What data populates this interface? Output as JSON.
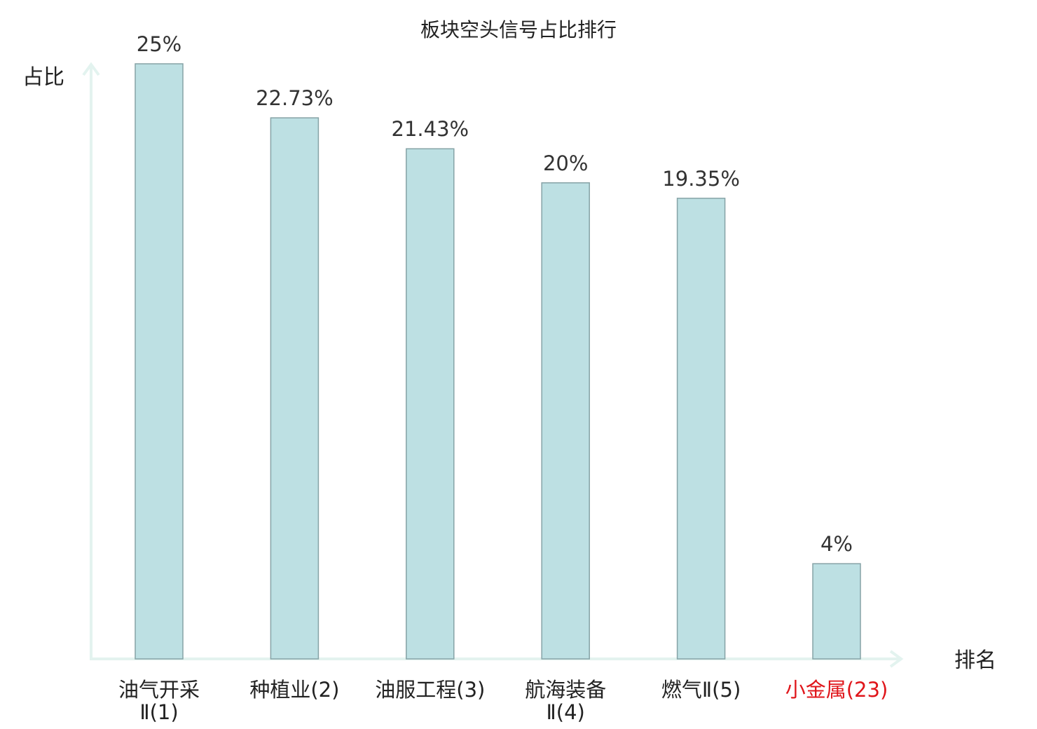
{
  "chart_data": {
    "type": "bar",
    "title": "板块空头信号占比排行",
    "ylabel": "占比",
    "xlabel": "排名",
    "categories": [
      [
        "油气开采",
        "Ⅱ(1)"
      ],
      [
        "种植业(2)"
      ],
      [
        "油服工程(3)"
      ],
      [
        "航海装备",
        "Ⅱ(4)"
      ],
      [
        "燃气Ⅱ(5)"
      ],
      [
        "小金属(23)"
      ]
    ],
    "values": [
      25,
      22.73,
      21.43,
      20,
      19.35,
      4
    ],
    "value_labels": [
      "25%",
      "22.73%",
      "21.43%",
      "20%",
      "19.35%",
      "4%"
    ],
    "highlight_index": 5,
    "ylim": [
      0,
      25
    ],
    "grid": false,
    "colors": {
      "bar_fill": "#bde0e3",
      "bar_stroke": "#86a3a6",
      "axis": "#e3f3ef",
      "highlight_text": "#e0161b"
    }
  }
}
